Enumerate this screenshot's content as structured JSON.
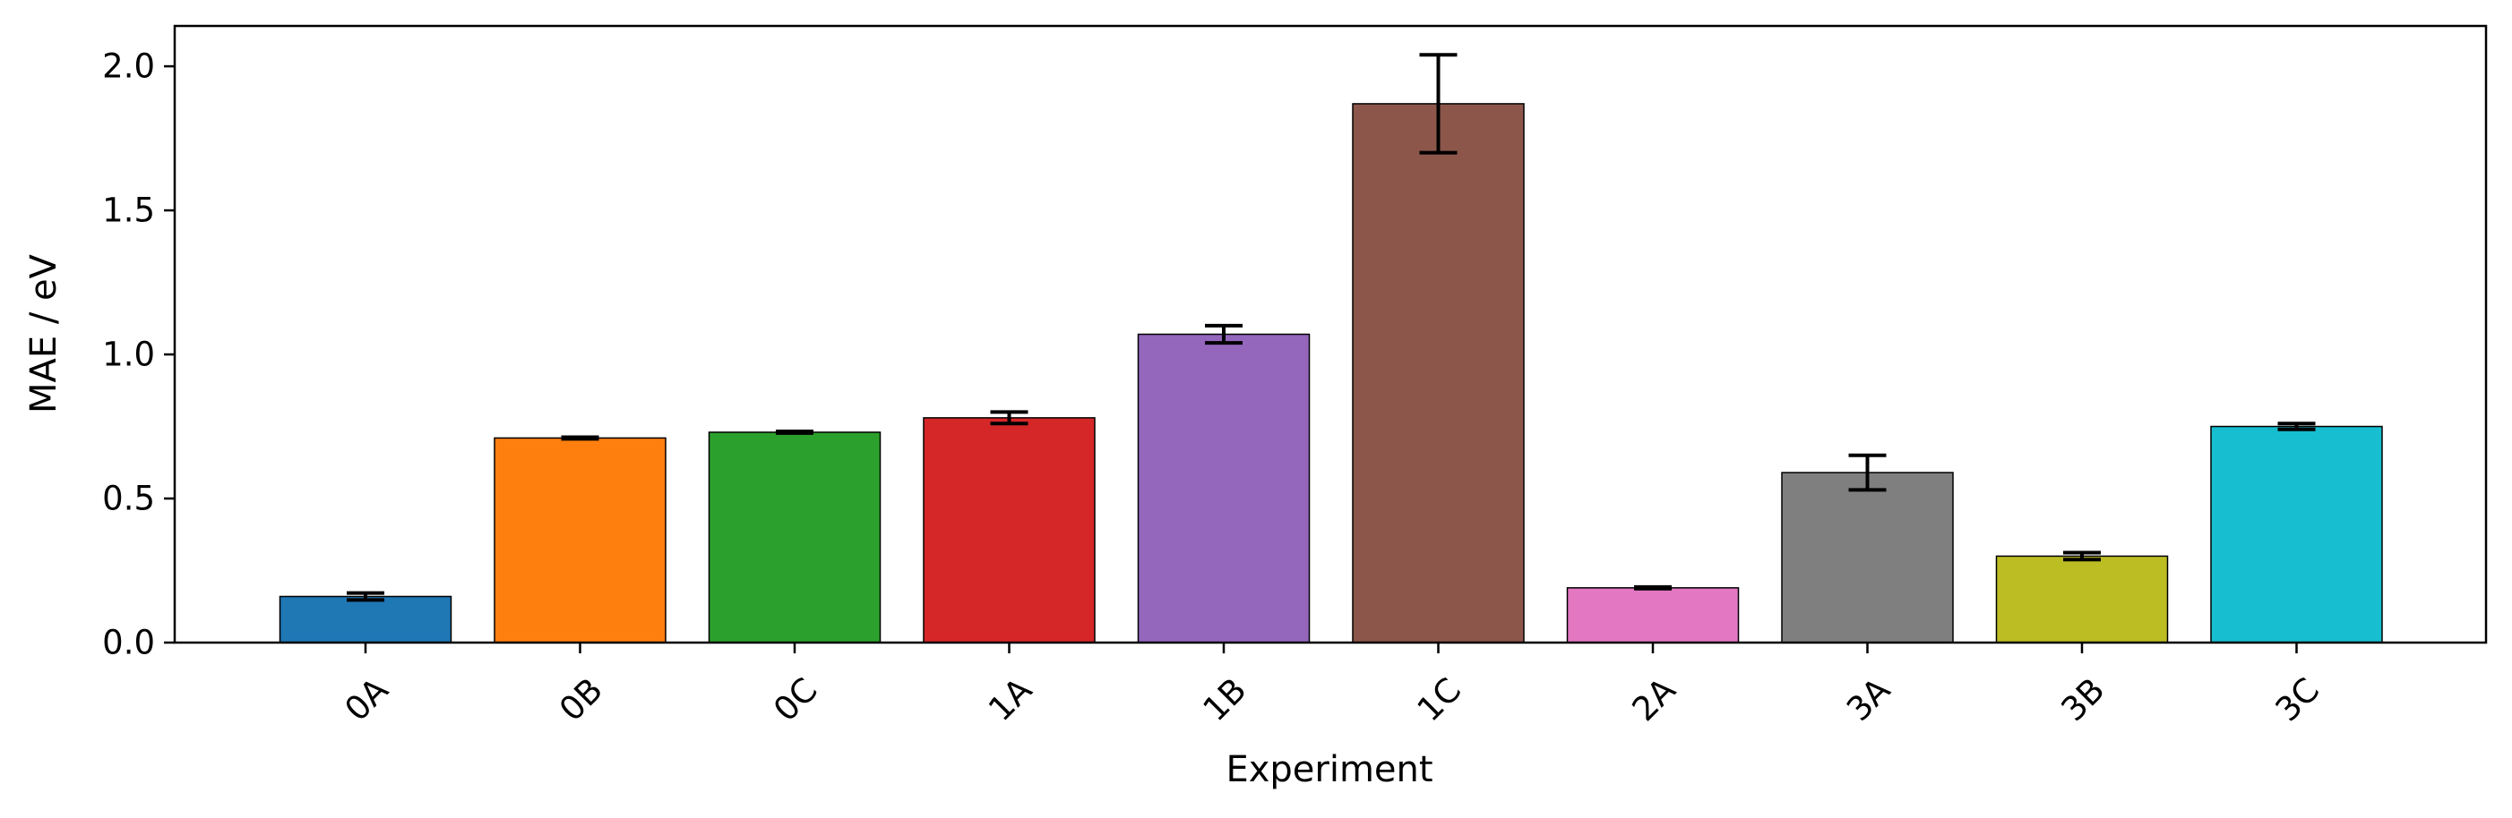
{
  "chart_data": {
    "type": "bar",
    "title": "",
    "xlabel": "Experiment",
    "ylabel": "MAE / eV",
    "categories": [
      "0A",
      "0B",
      "0C",
      "1A",
      "1B",
      "1C",
      "2A",
      "3A",
      "3B",
      "3C"
    ],
    "values": [
      0.16,
      0.71,
      0.73,
      0.78,
      1.07,
      1.87,
      0.19,
      0.59,
      0.3,
      0.75
    ],
    "errors": [
      0.012,
      0.003,
      0.003,
      0.02,
      0.03,
      0.17,
      0.003,
      0.06,
      0.012,
      0.01
    ],
    "colors": [
      "#1f77b4",
      "#ff7f0e",
      "#2ca02c",
      "#d62728",
      "#9467bd",
      "#8c564b",
      "#e377c2",
      "#7f7f7f",
      "#bcbd22",
      "#17becf"
    ],
    "ylim": [
      0,
      2.14
    ],
    "yticks": [
      0.0,
      0.5,
      1.0,
      1.5,
      2.0
    ],
    "ytick_labels": [
      "0.0",
      "0.5",
      "1.0",
      "1.5",
      "2.0"
    ],
    "xtick_rotation_deg": 45,
    "grid": false,
    "legend": "none"
  }
}
